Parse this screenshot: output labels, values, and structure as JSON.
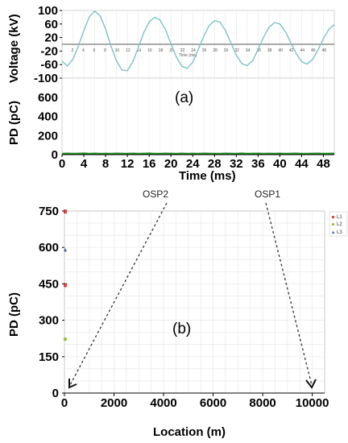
{
  "chart_data": [
    {
      "type": "line",
      "panel_label": "(a)",
      "ylabel": "Voltage (kV)",
      "ylim": [
        -100,
        100
      ],
      "yticks": [
        "100",
        "60",
        "20",
        "-20",
        "-60",
        "-100"
      ],
      "inner_xlabel": "Time (ms)",
      "inner_xticks": [
        "2",
        "4",
        "6",
        "8",
        "10",
        "12",
        "14",
        "16",
        "18",
        "20",
        "22",
        "24",
        "26",
        "28",
        "30",
        "32",
        "34",
        "36",
        "38",
        "40",
        "42",
        "44",
        "46",
        "48"
      ],
      "x": [
        0,
        1,
        2,
        3,
        4,
        5,
        6,
        7,
        8,
        9,
        10,
        11,
        12,
        13,
        14,
        15,
        16,
        17,
        18,
        19,
        20,
        21,
        22,
        23,
        24,
        25,
        26,
        27,
        28,
        29,
        30,
        31,
        32,
        33,
        34,
        35,
        36,
        37,
        38,
        39,
        40,
        41,
        42,
        43,
        44,
        45,
        46,
        47,
        48,
        49,
        50
      ],
      "series": [
        {
          "values": [
            -50,
            -64,
            -44,
            -5,
            40,
            81,
            98,
            84,
            45,
            -5,
            -49,
            -76,
            -78,
            -52,
            -10,
            34,
            66,
            80,
            72,
            43,
            2,
            -38,
            -65,
            -71,
            -53,
            -16,
            23,
            55,
            70,
            66,
            41,
            4,
            -32,
            -57,
            -63,
            -48,
            -16,
            21,
            50,
            64,
            60,
            38,
            5,
            -27,
            -52,
            -58,
            -45,
            -17,
            17,
            44,
            58
          ],
          "color": "#7cc4c4"
        }
      ]
    },
    {
      "type": "line",
      "ylabel": "PD (pC)",
      "xlabel": "Time (ms)",
      "xlim": [
        0,
        50
      ],
      "ylim": [
        0,
        800
      ],
      "yticks": [
        "800",
        "600",
        "400",
        "200",
        "0"
      ],
      "xticks": [
        "0",
        "4",
        "8",
        "12",
        "16",
        "20",
        "24",
        "28",
        "32",
        "36",
        "40",
        "44",
        "48"
      ],
      "series": [
        {
          "values": [
            10,
            12,
            9,
            11,
            13,
            10,
            12,
            9,
            11,
            10,
            12,
            11,
            9,
            12,
            10,
            11,
            13,
            10,
            9,
            12,
            11,
            10,
            12,
            9,
            11,
            10,
            12,
            11,
            9,
            10,
            12,
            11,
            10,
            13,
            9,
            11,
            12,
            10,
            11,
            9,
            12,
            10,
            11,
            12,
            9,
            10,
            11,
            12,
            10,
            11,
            12
          ],
          "color": "#1e8a1e"
        }
      ]
    },
    {
      "type": "scatter",
      "panel_label": "(b)",
      "xlabel": "Location (m)",
      "ylabel": "PD (pC)",
      "xlim": [
        0,
        10500
      ],
      "ylim": [
        0,
        750
      ],
      "xticks": [
        "0",
        "2000",
        "4000",
        "6000",
        "8000",
        "10000"
      ],
      "yticks": [
        "750",
        "600",
        "450",
        "300",
        "150",
        "0"
      ],
      "legend": {
        "placement": "top-right",
        "entries": [
          "L1",
          "L2",
          "L3"
        ]
      },
      "series": [
        {
          "name": "L1",
          "color": "#e0403a",
          "marker": "square",
          "points": [
            [
              0,
              748
            ],
            [
              0,
              445
            ]
          ]
        },
        {
          "name": "L2",
          "color": "#9bbb3a",
          "marker": "circle",
          "points": [
            [
              0,
              222
            ]
          ]
        },
        {
          "name": "L3",
          "color": "#3a5aa8",
          "marker": "triangle",
          "points": [
            [
              0,
              590
            ]
          ]
        }
      ],
      "annotations": [
        {
          "text": "OSP2",
          "x": 250
        },
        {
          "text": "OSP1",
          "x": 10300
        }
      ]
    }
  ]
}
